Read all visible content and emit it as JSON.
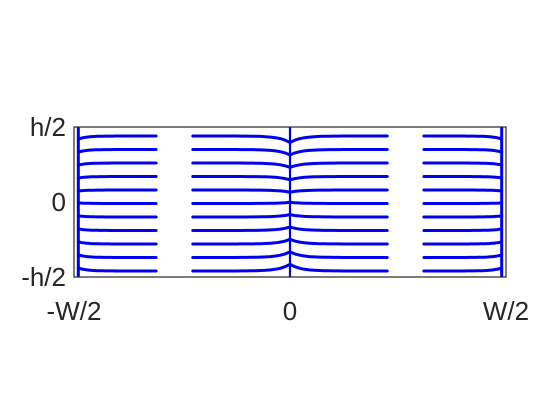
{
  "chart_data": {
    "type": "line",
    "title": "",
    "xlabel": "",
    "ylabel": "",
    "xlim": [
      -1,
      1
    ],
    "ylim": [
      -1,
      1
    ],
    "x_ticks": [
      {
        "value": -1,
        "label": "-W/2"
      },
      {
        "value": 0,
        "label": "0"
      },
      {
        "value": 1,
        "label": "W/2"
      }
    ],
    "y_ticks": [
      {
        "value": 1,
        "label": "h/2"
      },
      {
        "value": 0,
        "label": "0"
      },
      {
        "value": -1,
        "label": "-h/2"
      }
    ],
    "grid": false,
    "line_color": "#0000ee",
    "field_lines_y": [
      -0.92,
      -0.74,
      -0.56,
      -0.38,
      -0.2,
      -0.02,
      0.16,
      0.34,
      0.52,
      0.7,
      0.88
    ],
    "segments_x": [
      [
        -0.98,
        -0.62
      ],
      [
        -0.45,
        0.45
      ],
      [
        0.62,
        0.98
      ]
    ],
    "vertical_lines_x": [
      -0.98,
      0.0,
      0.98
    ]
  }
}
